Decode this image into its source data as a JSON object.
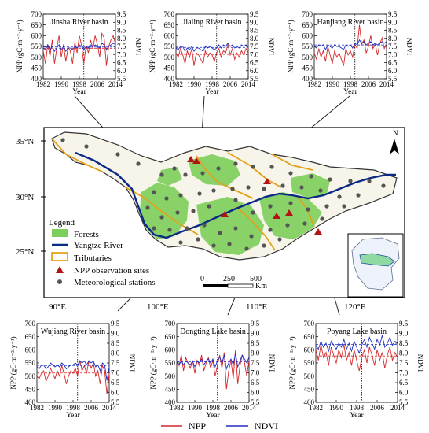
{
  "colors": {
    "npp": "#d62728",
    "ndvi": "#1f2fbf",
    "forest": "#7ccf5a",
    "tributary": "#e3a21a",
    "yangtze": "#0b2a86",
    "site": "#b01414",
    "station": "#555555"
  },
  "map": {
    "lat_labels": [
      "35°N",
      "30°N",
      "25°N"
    ],
    "lon_labels": [
      "90°E",
      "100°E",
      "110°E",
      "120°E"
    ],
    "north_label": "N",
    "scale_labels": [
      "0",
      "250",
      "500"
    ],
    "scale_unit": "Km",
    "legend": {
      "title": "Legend",
      "items": [
        {
          "label": "Forests",
          "symbol": "forest-patch"
        },
        {
          "label": "Yangtze River",
          "symbol": "river-line"
        },
        {
          "label": "Tributaries",
          "symbol": "tributary-box"
        },
        {
          "label": "NPP observation sites",
          "symbol": "triangle"
        },
        {
          "label": "Meteorological stations",
          "symbol": "station-dot"
        }
      ]
    }
  },
  "chart_data": [
    {
      "type": "line",
      "title": "Jinsha River basin",
      "xlabel": "Year",
      "ylabel_left": "NPP (gC·m⁻²·y⁻¹)",
      "ylabel_right": "NDVI",
      "x_ticks": [
        1982,
        1990,
        1998,
        2006,
        2014
      ],
      "xlim": [
        1982,
        2014
      ],
      "ylim_left": [
        400,
        700
      ],
      "ylim_right": [
        5.5,
        9.5
      ],
      "yticks_left": [
        400,
        450,
        500,
        550,
        600,
        650,
        700
      ],
      "yticks_right": [
        5.5,
        6.0,
        6.5,
        7.0,
        7.5,
        8.0,
        8.5,
        9.0,
        9.5
      ],
      "break_year": 2000,
      "x": [
        1982,
        1983,
        1984,
        1985,
        1986,
        1987,
        1988,
        1989,
        1990,
        1991,
        1992,
        1993,
        1994,
        1995,
        1996,
        1997,
        1998,
        1999,
        2000,
        2001,
        2002,
        2003,
        2004,
        2005,
        2006,
        2007,
        2008,
        2009,
        2010,
        2011,
        2012,
        2013,
        2014
      ],
      "series": [
        {
          "name": "NPP",
          "axis": "left",
          "values": [
            530,
            470,
            560,
            505,
            580,
            470,
            540,
            600,
            500,
            560,
            480,
            545,
            530,
            470,
            570,
            520,
            600,
            555,
            470,
            555,
            520,
            580,
            540,
            600,
            560,
            500,
            610,
            590,
            460,
            550,
            580,
            600,
            560
          ]
        },
        {
          "name": "NDVI",
          "axis": "right",
          "values": [
            7.4,
            7.3,
            7.6,
            7.3,
            7.5,
            7.2,
            7.4,
            7.6,
            7.3,
            7.5,
            7.2,
            7.4,
            7.4,
            7.3,
            7.5,
            7.4,
            7.6,
            7.5,
            7.3,
            7.5,
            7.4,
            7.6,
            7.5,
            7.6,
            7.5,
            7.4,
            7.7,
            7.6,
            7.3,
            7.5,
            7.6,
            7.7,
            7.6
          ]
        }
      ]
    },
    {
      "type": "line",
      "title": "Jialing River basin",
      "xlabel": "Year",
      "ylabel_left": "NPP (gC·m⁻²·y⁻¹)",
      "ylabel_right": "NDVI",
      "x_ticks": [
        1982,
        1990,
        1998,
        2006,
        2014
      ],
      "xlim": [
        1982,
        2014
      ],
      "ylim_left": [
        400,
        700
      ],
      "ylim_right": [
        5.5,
        9.5
      ],
      "yticks_left": [
        400,
        450,
        500,
        550,
        600,
        650,
        700
      ],
      "yticks_right": [
        5.5,
        6.0,
        6.5,
        7.0,
        7.5,
        8.0,
        8.5,
        9.0,
        9.5
      ],
      "break_year": 2000,
      "x": [
        1982,
        1983,
        1984,
        1985,
        1986,
        1987,
        1988,
        1989,
        1990,
        1991,
        1992,
        1993,
        1994,
        1995,
        1996,
        1997,
        1998,
        1999,
        2000,
        2001,
        2002,
        2003,
        2004,
        2005,
        2006,
        2007,
        2008,
        2009,
        2010,
        2011,
        2012,
        2013,
        2014
      ],
      "series": [
        {
          "name": "NPP",
          "axis": "left",
          "values": [
            520,
            500,
            540,
            510,
            470,
            530,
            500,
            540,
            460,
            520,
            510,
            490,
            470,
            530,
            500,
            520,
            510,
            480,
            520,
            540,
            500,
            530,
            520,
            560,
            510,
            540,
            490,
            520,
            500,
            530,
            510,
            540,
            520
          ]
        },
        {
          "name": "NDVI",
          "axis": "right",
          "values": [
            7.4,
            7.3,
            7.5,
            7.5,
            7.2,
            7.4,
            7.3,
            7.5,
            7.2,
            7.4,
            7.4,
            7.3,
            7.2,
            7.5,
            7.4,
            7.5,
            7.4,
            7.3,
            7.4,
            7.6,
            7.4,
            7.6,
            7.5,
            7.7,
            7.5,
            7.6,
            7.4,
            7.5,
            7.4,
            7.6,
            7.5,
            7.6,
            7.5
          ]
        }
      ]
    },
    {
      "type": "line",
      "title": "Hanjiang River basin",
      "xlabel": "Year",
      "ylabel_left": "NPP (gC·m⁻²·y⁻¹)",
      "ylabel_right": "NDVI",
      "x_ticks": [
        1982,
        1990,
        1998,
        2006,
        2014
      ],
      "xlim": [
        1982,
        2014
      ],
      "ylim_left": [
        400,
        700
      ],
      "ylim_right": [
        5.5,
        9.5
      ],
      "yticks_left": [
        400,
        450,
        500,
        550,
        600,
        650,
        700
      ],
      "yticks_right": [
        5.5,
        6.0,
        6.5,
        7.0,
        7.5,
        8.0,
        8.5,
        9.0,
        9.5
      ],
      "break_year": 2000,
      "x": [
        1982,
        1983,
        1984,
        1985,
        1986,
        1987,
        1988,
        1989,
        1990,
        1991,
        1992,
        1993,
        1994,
        1995,
        1996,
        1997,
        1998,
        1999,
        2000,
        2001,
        2002,
        2003,
        2004,
        2005,
        2006,
        2007,
        2008,
        2009,
        2010,
        2011,
        2012,
        2013,
        2014
      ],
      "series": [
        {
          "name": "NPP",
          "axis": "left",
          "values": [
            520,
            490,
            540,
            500,
            530,
            480,
            550,
            510,
            470,
            530,
            500,
            520,
            490,
            460,
            540,
            510,
            530,
            500,
            560,
            540,
            650,
            560,
            580,
            520,
            550,
            600,
            540,
            560,
            510,
            560,
            590,
            540,
            560
          ]
        },
        {
          "name": "NDVI",
          "axis": "right",
          "values": [
            7.5,
            7.4,
            7.6,
            7.5,
            7.6,
            7.3,
            7.6,
            7.5,
            7.4,
            7.6,
            7.5,
            7.5,
            7.4,
            7.3,
            7.6,
            7.5,
            7.6,
            7.4,
            7.7,
            7.6,
            7.9,
            7.7,
            7.8,
            7.6,
            7.7,
            7.8,
            7.6,
            7.7,
            7.6,
            7.7,
            7.8,
            7.7,
            7.8
          ]
        }
      ]
    },
    {
      "type": "line",
      "title": "Wujiang River basin",
      "xlabel": "Year",
      "ylabel_left": "NPP (gC·m⁻²·y⁻¹)",
      "ylabel_right": "NDVI",
      "x_ticks": [
        1982,
        1990,
        1998,
        2006,
        2014
      ],
      "xlim": [
        1982,
        2014
      ],
      "ylim_left": [
        400,
        700
      ],
      "ylim_right": [
        5.5,
        9.5
      ],
      "yticks_left": [
        400,
        450,
        500,
        550,
        600,
        650,
        700
      ],
      "yticks_right": [
        5.5,
        6.0,
        6.5,
        7.0,
        7.5,
        8.0,
        8.5,
        9.0,
        9.5
      ],
      "break_year": 2000,
      "x": [
        1982,
        1983,
        1984,
        1985,
        1986,
        1987,
        1988,
        1989,
        1990,
        1991,
        1992,
        1993,
        1994,
        1995,
        1996,
        1997,
        1998,
        1999,
        2000,
        2001,
        2002,
        2003,
        2004,
        2005,
        2006,
        2007,
        2008,
        2009,
        2010,
        2011,
        2012,
        2013,
        2014
      ],
      "series": [
        {
          "name": "NPP",
          "axis": "left",
          "values": [
            500,
            490,
            510,
            520,
            480,
            500,
            530,
            510,
            490,
            520,
            500,
            540,
            510,
            470,
            500,
            520,
            510,
            530,
            500,
            560,
            520,
            540,
            510,
            560,
            530,
            550,
            500,
            520,
            470,
            540,
            520,
            430,
            510
          ]
        },
        {
          "name": "NDVI",
          "axis": "right",
          "values": [
            7.3,
            7.2,
            7.4,
            7.4,
            7.2,
            7.3,
            7.5,
            7.4,
            7.3,
            7.4,
            7.3,
            7.5,
            7.4,
            7.2,
            7.3,
            7.4,
            7.4,
            7.5,
            7.4,
            7.6,
            7.5,
            7.6,
            7.4,
            7.6,
            7.5,
            7.6,
            7.3,
            7.4,
            7.1,
            7.5,
            7.4,
            6.6,
            7.3
          ]
        }
      ]
    },
    {
      "type": "line",
      "title": "Dongting Lake basin",
      "xlabel": "Year",
      "ylabel_left": "NPP (gC·m⁻²·y⁻¹)",
      "ylabel_right": "NDVI",
      "x_ticks": [
        1982,
        1990,
        1998,
        2006,
        2014
      ],
      "xlim": [
        1982,
        2014
      ],
      "ylim_left": [
        400,
        700
      ],
      "ylim_right": [
        5.5,
        9.5
      ],
      "yticks_left": [
        400,
        450,
        500,
        550,
        600,
        650,
        700
      ],
      "yticks_right": [
        5.5,
        6.0,
        6.5,
        7.0,
        7.5,
        8.0,
        8.5,
        9.0,
        9.5
      ],
      "break_year": 2000,
      "x": [
        1982,
        1983,
        1984,
        1985,
        1986,
        1987,
        1988,
        1989,
        1990,
        1991,
        1992,
        1993,
        1994,
        1995,
        1996,
        1997,
        1998,
        1999,
        2000,
        2001,
        2002,
        2003,
        2004,
        2005,
        2006,
        2007,
        2008,
        2009,
        2010,
        2011,
        2012,
        2013,
        2014
      ],
      "series": [
        {
          "name": "NPP",
          "axis": "left",
          "values": [
            560,
            540,
            580,
            520,
            570,
            550,
            530,
            560,
            510,
            560,
            540,
            580,
            520,
            550,
            570,
            530,
            560,
            500,
            540,
            580,
            530,
            590,
            450,
            520,
            560,
            490,
            600,
            470,
            540,
            580,
            550,
            500,
            560
          ]
        },
        {
          "name": "NDVI",
          "axis": "right",
          "values": [
            7.5,
            7.4,
            7.6,
            7.4,
            7.6,
            7.5,
            7.4,
            7.6,
            7.3,
            7.6,
            7.5,
            7.7,
            7.4,
            7.6,
            7.7,
            7.5,
            7.7,
            7.3,
            7.6,
            7.8,
            7.5,
            7.9,
            7.2,
            7.5,
            7.7,
            7.4,
            8.0,
            7.3,
            7.6,
            7.9,
            7.7,
            7.5,
            7.8
          ]
        }
      ]
    },
    {
      "type": "line",
      "title": "Poyang Lake basin",
      "xlabel": "Year",
      "ylabel_left": "NPP (gC·m⁻²·y⁻¹)",
      "ylabel_right": "NDVI",
      "x_ticks": [
        1982,
        1990,
        1998,
        2006,
        2014
      ],
      "xlim": [
        1982,
        2014
      ],
      "ylim_left": [
        400,
        700
      ],
      "ylim_right": [
        5.5,
        9.5
      ],
      "yticks_left": [
        400,
        450,
        500,
        550,
        600,
        650,
        700
      ],
      "yticks_right": [
        5.5,
        6.0,
        6.5,
        7.0,
        7.5,
        8.0,
        8.5,
        9.0,
        9.5
      ],
      "break_year": 2000,
      "x": [
        1982,
        1983,
        1984,
        1985,
        1986,
        1987,
        1988,
        1989,
        1990,
        1991,
        1992,
        1993,
        1994,
        1995,
        1996,
        1997,
        1998,
        1999,
        2000,
        2001,
        2002,
        2003,
        2004,
        2005,
        2006,
        2007,
        2008,
        2009,
        2010,
        2011,
        2012,
        2013,
        2014
      ],
      "series": [
        {
          "name": "NPP",
          "axis": "left",
          "values": [
            600,
            560,
            620,
            570,
            590,
            540,
            610,
            580,
            550,
            600,
            570,
            620,
            560,
            590,
            540,
            600,
            560,
            520,
            570,
            600,
            550,
            610,
            580,
            540,
            600,
            560,
            590,
            530,
            580,
            610,
            560,
            590,
            570
          ]
        },
        {
          "name": "NDVI",
          "axis": "right",
          "values": [
            8.4,
            8.2,
            8.6,
            8.3,
            8.5,
            8.1,
            8.6,
            8.4,
            8.2,
            8.5,
            8.3,
            8.7,
            8.2,
            8.5,
            8.1,
            8.6,
            8.3,
            8.0,
            8.4,
            8.7,
            8.3,
            8.8,
            8.5,
            8.2,
            8.7,
            8.4,
            8.9,
            8.3,
            8.5,
            8.8,
            8.4,
            8.6,
            8.5
          ]
        }
      ]
    }
  ],
  "legend_bottom": [
    {
      "label": "NPP"
    },
    {
      "label": "NDVI"
    }
  ]
}
